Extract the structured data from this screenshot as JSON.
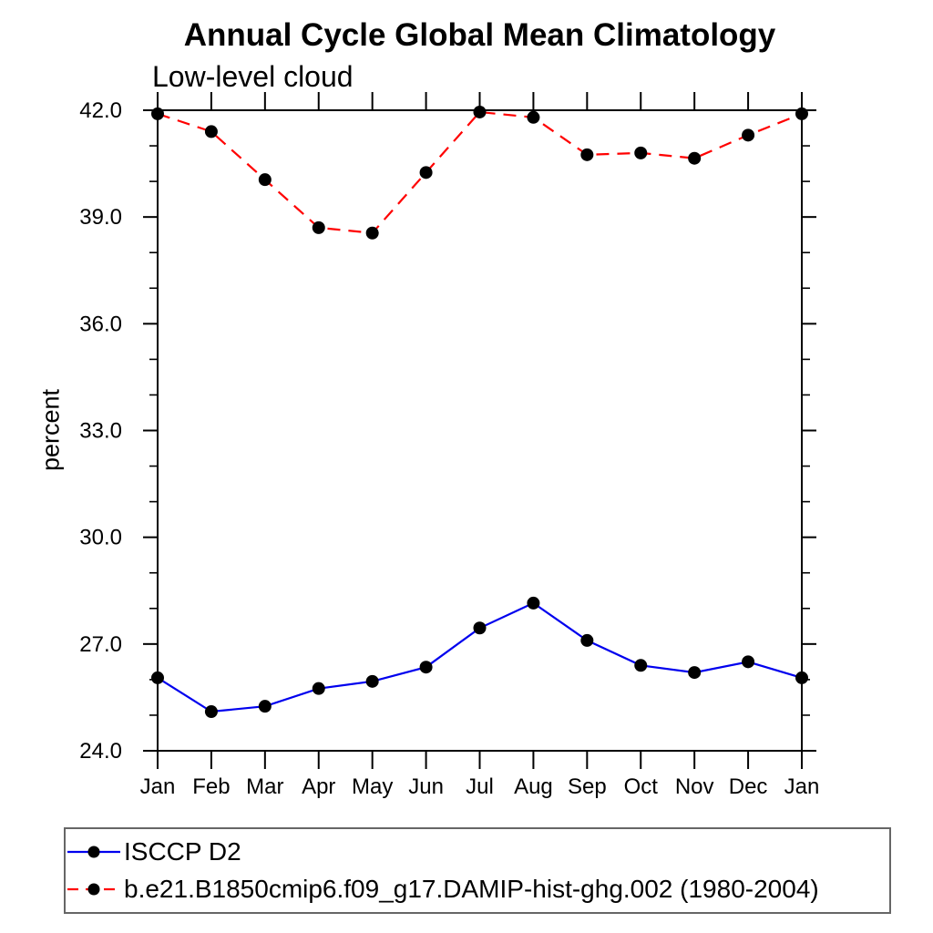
{
  "chart_data": {
    "type": "line",
    "title": "Annual Cycle Global Mean Climatology",
    "subtitle": "Low-level cloud",
    "xlabel": "",
    "ylabel": "percent",
    "categories": [
      "Jan",
      "Feb",
      "Mar",
      "Apr",
      "May",
      "Jun",
      "Jul",
      "Aug",
      "Sep",
      "Oct",
      "Nov",
      "Dec",
      "Jan"
    ],
    "ylim": [
      24.0,
      42.0
    ],
    "y_ticks_major": [
      24.0,
      27.0,
      30.0,
      33.0,
      36.0,
      39.0,
      42.0
    ],
    "y_tick_labels": [
      "24.0",
      "27.0",
      "30.0",
      "33.0",
      "36.0",
      "39.0",
      "42.0"
    ],
    "y_minor_step": 1.0,
    "grid": false,
    "legend_position": "bottom-outside",
    "axis_color": "#000000",
    "series": [
      {
        "name": "ISCCP D2",
        "color": "#0000ee",
        "line_style": "solid",
        "marker": "filled-circle",
        "marker_color": "#000000",
        "values": [
          26.05,
          25.1,
          25.25,
          25.75,
          25.95,
          26.35,
          27.45,
          28.15,
          27.1,
          26.4,
          26.2,
          26.5,
          26.05
        ]
      },
      {
        "name": "b.e21.B1850cmip6.f09_g17.DAMIP-hist-ghg.002 (1980-2004)",
        "color": "#ff0000",
        "line_style": "dashed",
        "marker": "filled-circle",
        "marker_color": "#000000",
        "values": [
          41.9,
          41.4,
          40.05,
          38.7,
          38.55,
          40.25,
          41.95,
          41.8,
          40.75,
          40.8,
          40.65,
          41.3,
          41.9
        ]
      }
    ]
  }
}
